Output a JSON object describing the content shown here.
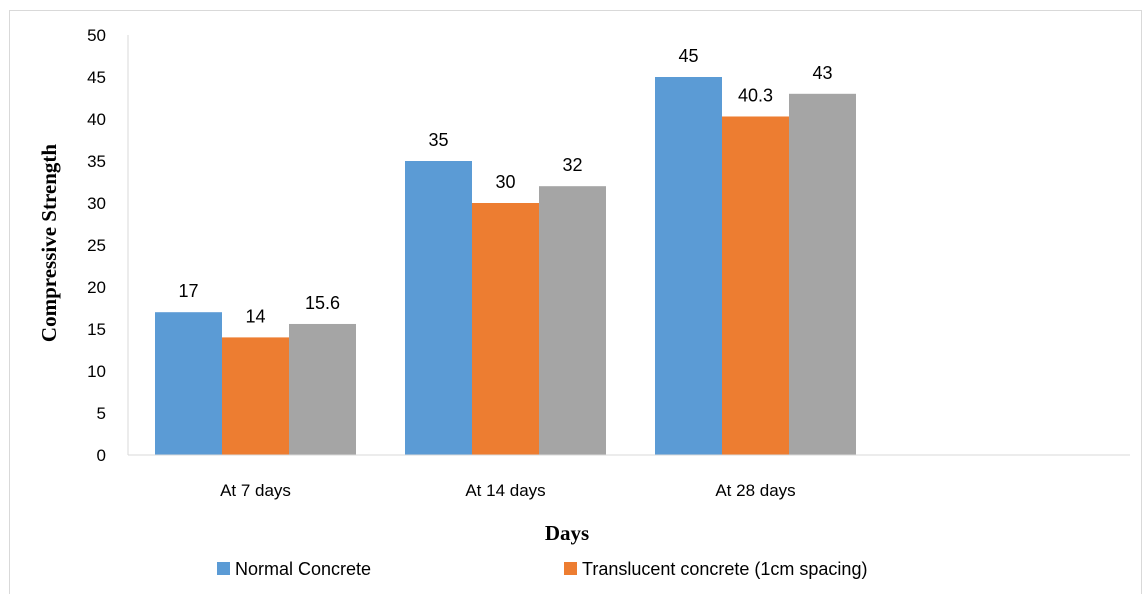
{
  "chart_data": {
    "type": "bar",
    "categories": [
      "At 7 days",
      "At 14 days",
      "At 28 days"
    ],
    "series": [
      {
        "name": "Normal Concrete",
        "values": [
          17,
          35,
          45
        ],
        "labels": [
          "17",
          "35",
          "45"
        ],
        "color": "#5b9bd5"
      },
      {
        "name": "Translucent concrete (1cm spacing)",
        "values": [
          14,
          30,
          40.3
        ],
        "labels": [
          "14",
          "30",
          "40.3"
        ],
        "color": "#ed7d31"
      },
      {
        "name": "",
        "values": [
          15.6,
          32,
          43
        ],
        "labels": [
          "15.6",
          "32",
          "43"
        ],
        "color": "#a5a5a5"
      }
    ],
    "xlabel": "Days",
    "ylabel": "Compressive Strength",
    "ylim": [
      0,
      50
    ],
    "yticks": [
      "0",
      "5",
      "10",
      "15",
      "20",
      "25",
      "30",
      "35",
      "40",
      "45",
      "50"
    ],
    "grid": false,
    "legend_position": "bottom"
  }
}
